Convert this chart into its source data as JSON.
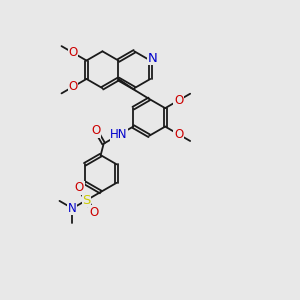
{
  "bg_color": "#e8e8e8",
  "bond_color": "#1a1a1a",
  "bond_lw": 1.3,
  "dbl_off": 0.05,
  "atom_colors": {
    "N": "#0000cc",
    "O": "#cc0000",
    "S": "#cccc00",
    "C": "#1a1a1a"
  },
  "fs": 8.5,
  "fig_size": [
    3.0,
    3.0
  ],
  "dpi": 100,
  "xlim": [
    0,
    10
  ],
  "ylim": [
    0,
    10
  ],
  "ring_r": 0.62
}
